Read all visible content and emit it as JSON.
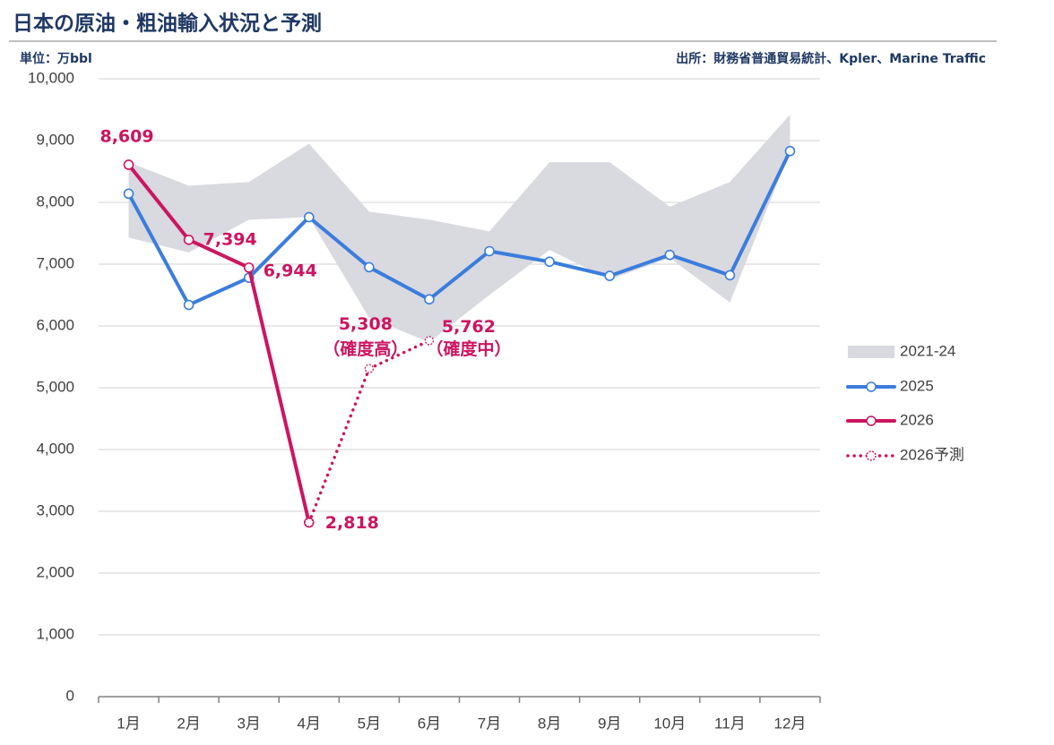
{
  "chart_data": {
    "type": "line",
    "title": "日本の原油・粗油輸入状況と予測",
    "unit_label": "単位：万bbl",
    "source": "出所：財務省普通貿易統計、Kpler、Marine Traffic",
    "categories": [
      "1月",
      "2月",
      "3月",
      "4月",
      "5月",
      "6月",
      "7月",
      "8月",
      "9月",
      "10月",
      "11月",
      "12月"
    ],
    "ylim": [
      0,
      10000
    ],
    "yticks": [
      0,
      {
        "value": 1000,
        "label": "1,000"
      },
      {
        "value": 2000,
        "label": "2,000"
      },
      {
        "value": 3000,
        "label": "3,000"
      },
      {
        "value": 4000,
        "label": "4,000"
      },
      {
        "value": 5000,
        "label": "5,000"
      },
      {
        "value": 6000,
        "label": "6,000"
      },
      {
        "value": 7000,
        "label": "7,000"
      },
      {
        "value": 8000,
        "label": "8,000"
      },
      {
        "value": 9000,
        "label": "9,000"
      },
      {
        "value": 10000,
        "label": "10,000"
      }
    ],
    "grid": true,
    "legend": "right",
    "band": {
      "name": "2021-24",
      "color": "#d9d9e0",
      "upper": [
        8650,
        8270,
        8330,
        8950,
        7850,
        7720,
        7530,
        8650,
        8650,
        7930,
        8330,
        9420
      ],
      "lower": [
        7430,
        7190,
        7720,
        7760,
        6130,
        5740,
        6500,
        7230,
        6750,
        7100,
        6380,
        8830
      ]
    },
    "series": [
      {
        "name": "2025",
        "color": "#3b7ddd",
        "style": "solid",
        "values": [
          8140,
          6340,
          6780,
          7760,
          6950,
          6430,
          7210,
          7040,
          6810,
          7150,
          6820,
          8830
        ]
      },
      {
        "name": "2026",
        "color": "#cc1560",
        "style": "solid",
        "values": [
          8609,
          7394,
          6944,
          2818,
          null,
          null,
          null,
          null,
          null,
          null,
          null,
          null
        ],
        "value_labels": [
          "8,609",
          "7,394",
          "6,944",
          "2,818",
          null,
          null,
          null,
          null,
          null,
          null,
          null,
          null
        ]
      },
      {
        "name": "2026予測",
        "color": "#cc1560",
        "style": "dotted",
        "values": [
          null,
          null,
          null,
          2818,
          5308,
          5762,
          null,
          null,
          null,
          null,
          null,
          null
        ],
        "value_labels": [
          null,
          null,
          null,
          null,
          "5,308",
          "5,762",
          null,
          null,
          null,
          null,
          null,
          null
        ],
        "annotations": [
          null,
          null,
          null,
          null,
          "（確度高）",
          "（確度中）",
          null,
          null,
          null,
          null,
          null,
          null
        ]
      }
    ]
  }
}
